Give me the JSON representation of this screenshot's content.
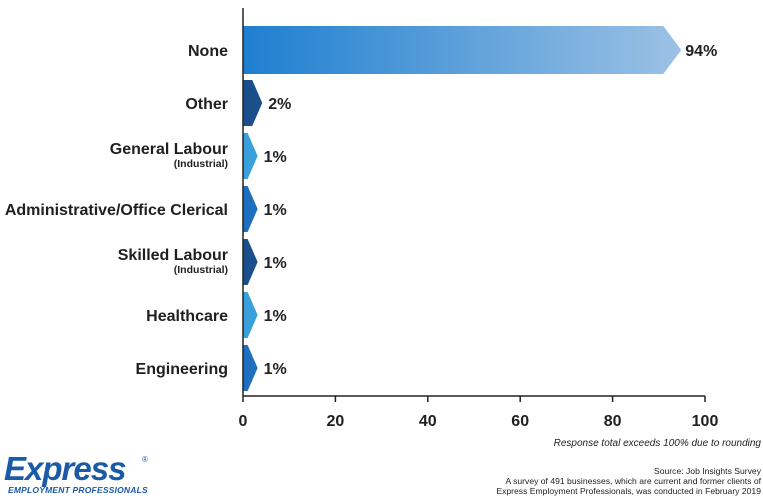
{
  "chart_data": {
    "type": "bar",
    "orientation": "horizontal",
    "categories": [
      {
        "label": "None",
        "sublabel": ""
      },
      {
        "label": "Other",
        "sublabel": ""
      },
      {
        "label": "General Labour",
        "sublabel": "(Industrial)"
      },
      {
        "label": "Administrative/Office Clerical",
        "sublabel": ""
      },
      {
        "label": "Skilled Labour",
        "sublabel": "(Industrial)"
      },
      {
        "label": "Healthcare",
        "sublabel": ""
      },
      {
        "label": "Engineering",
        "sublabel": ""
      }
    ],
    "values": [
      94,
      2,
      1,
      1,
      1,
      1,
      1
    ],
    "value_labels": [
      "94%",
      "2%",
      "1%",
      "1%",
      "1%",
      "1%",
      "1%"
    ],
    "bar_colors": [
      "#1e7fd0",
      "#1a4f8c",
      "#3aa0dc",
      "#1e6fbe",
      "#1a4f8c",
      "#3aa0dc",
      "#1e6fbe"
    ],
    "xlim": [
      0,
      100
    ],
    "xticks": [
      0,
      20,
      40,
      60,
      80,
      100
    ],
    "grid": false
  },
  "footnote": "Response total exceeds 100% due to rounding",
  "source": {
    "line1": "Source: Job Insights Survey",
    "line2": "A survey of 491 businesses, which are current and former clients of",
    "line3": "Express Employment Professionals, was conducted in February 2019"
  },
  "logo": {
    "word": "Express",
    "reg": "®",
    "tagline": "EMPLOYMENT PROFESSIONALS",
    "color": "#1a5aa6"
  }
}
